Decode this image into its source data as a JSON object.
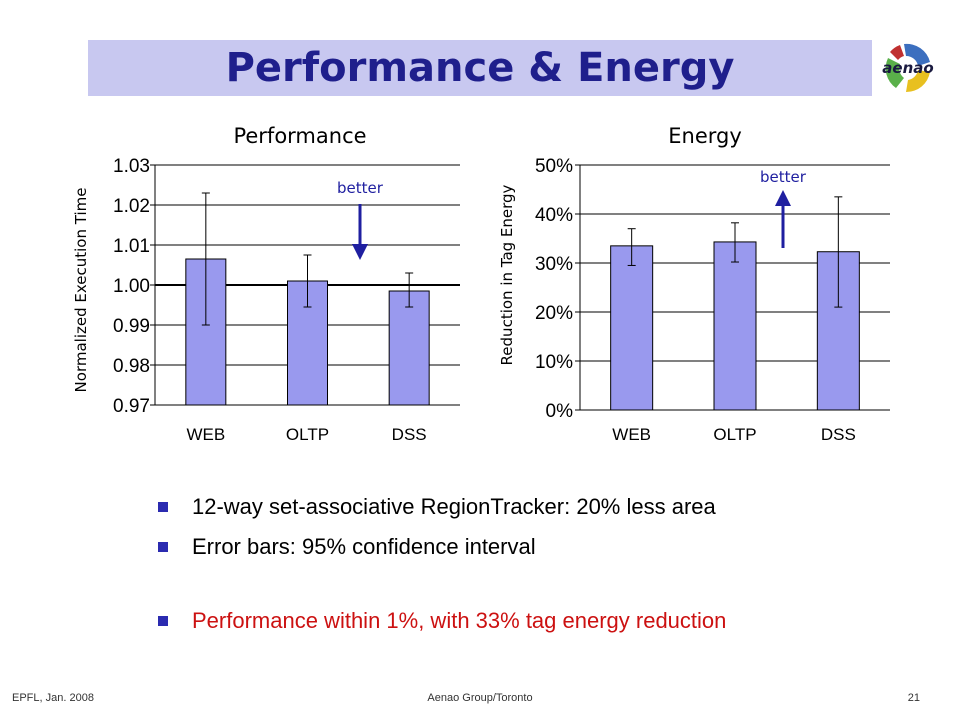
{
  "slide": {
    "title": "Performance & Energy",
    "logo_text": "aenao",
    "bullets": [
      {
        "text": "12-way set-associative RegionTracker: 20% less area",
        "color": "#000000"
      },
      {
        "text": "Error bars: 95% confidence interval",
        "color": "#000000"
      },
      {
        "text": "Performance within 1%, with 33% tag energy reduction",
        "color": "#cc1111"
      }
    ],
    "footer": {
      "left": "EPFL, Jan. 2008",
      "center": "Aenao Group/Toronto",
      "page": "21"
    }
  },
  "colors": {
    "title_bar": "#c8c8f0",
    "title_text": "#1f1f8c",
    "bar_fill": "#9999ee",
    "arrow": "#1f1fa0",
    "bullet": "#2b2bb0"
  },
  "chart_data": [
    {
      "type": "bar",
      "title": "Performance",
      "ylabel": "Normalized Execution Time",
      "categories": [
        "WEB",
        "OLTP",
        "DSS"
      ],
      "values": [
        1.0065,
        1.001,
        0.9985
      ],
      "error_low": [
        0.99,
        0.9945,
        0.9945
      ],
      "error_high": [
        1.023,
        1.0075,
        1.003
      ],
      "ylim": [
        0.97,
        1.03
      ],
      "yticks": [
        0.97,
        0.98,
        0.99,
        1.0,
        1.01,
        1.02,
        1.03
      ],
      "ytick_labels": [
        "0.97",
        "0.98",
        "0.99",
        "1.00",
        "1.01",
        "1.02",
        "1.03"
      ],
      "reference_line": 1.0,
      "grid": true,
      "annotation": {
        "text": "better",
        "arrow": "down"
      }
    },
    {
      "type": "bar",
      "title": "Energy",
      "ylabel": "Reduction in Tag Energy",
      "categories": [
        "WEB",
        "OLTP",
        "DSS"
      ],
      "values": [
        33.5,
        34.3,
        32.3
      ],
      "error_low": [
        29.5,
        30.2,
        21.0
      ],
      "error_high": [
        37.0,
        38.2,
        43.5
      ],
      "ylim": [
        0,
        50
      ],
      "yticks": [
        0,
        10,
        20,
        30,
        40,
        50
      ],
      "ytick_labels": [
        "0%",
        "10%",
        "20%",
        "30%",
        "40%",
        "50%"
      ],
      "grid": true,
      "annotation": {
        "text": "better",
        "arrow": "up"
      }
    }
  ]
}
